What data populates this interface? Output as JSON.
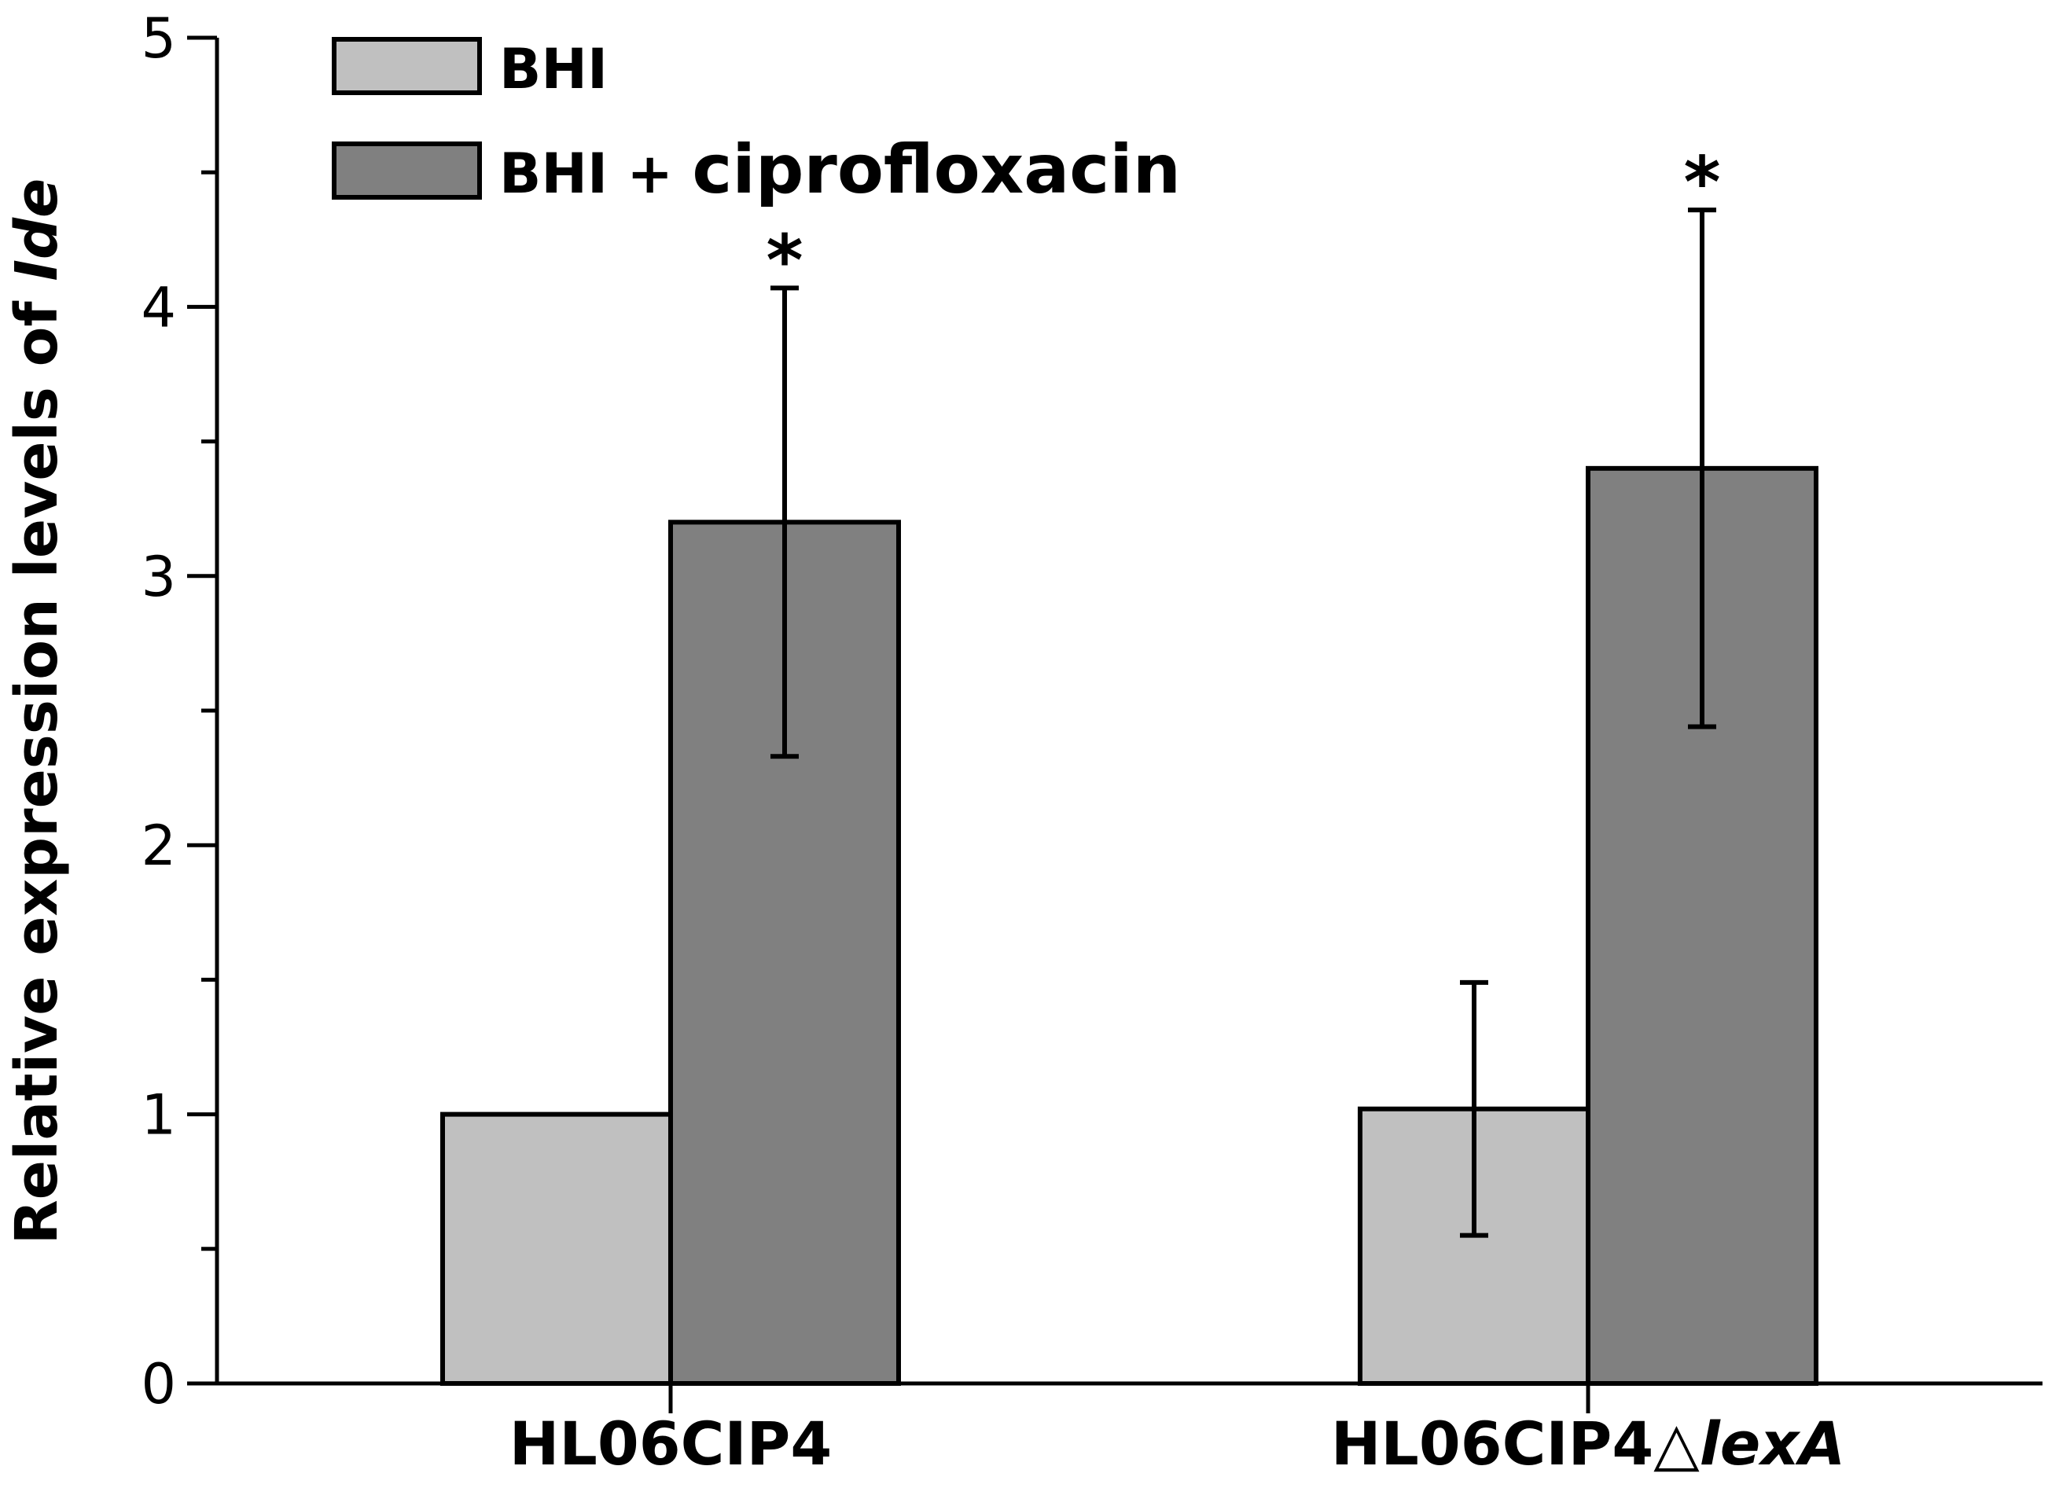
{
  "chart_data": {
    "type": "bar",
    "categories": [
      "HL06CIP4",
      "HL06CIP4△lexA"
    ],
    "category_parts": [
      {
        "plain": "HL06CIP4",
        "italic": ""
      },
      {
        "plain": "HL06CIP4△",
        "italic": "lexA"
      }
    ],
    "series": [
      {
        "name": "BHI",
        "color": "#c0c0c0",
        "values": [
          1.0,
          1.02
        ],
        "errors": [
          0.0,
          0.47
        ]
      },
      {
        "name": "BHI + ciprofloxacin",
        "name_parts": [
          "BHI + ",
          "ciprofloxacin"
        ],
        "color": "#808080",
        "values": [
          3.2,
          3.4
        ],
        "errors": [
          0.87,
          0.96
        ]
      }
    ],
    "significance": [
      {
        "category": 0,
        "series": 1,
        "label": "*"
      },
      {
        "category": 1,
        "series": 1,
        "label": "*"
      }
    ],
    "ylabel": "Relative expression levels of ",
    "ylabel_italic": "Ide",
    "ylim": [
      0,
      5
    ],
    "yticks": [
      "0",
      "1",
      "2",
      "3",
      "4",
      "5"
    ],
    "minor_ticks": [
      0.5,
      1.5,
      2.5,
      3.5,
      4.5
    ],
    "legend_position": "top-left",
    "grid": false
  }
}
